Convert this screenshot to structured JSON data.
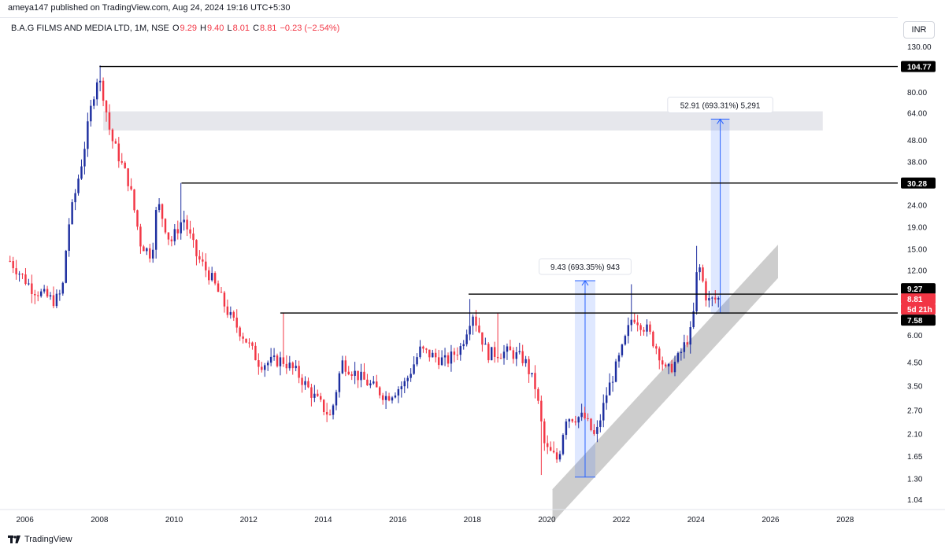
{
  "header": {
    "publish_line": "ameya147 published on TradingView.com, Aug 24, 2024 19:16 UTC+5:30",
    "currency": "INR"
  },
  "legend": {
    "name": "B.A.G FILMS AND MEDIA LTD, 1M, NSE",
    "open_label": "O",
    "open": "9.29",
    "high_label": "H",
    "high": "9.40",
    "low_label": "L",
    "low": "8.01",
    "close_label": "C",
    "close": "8.81",
    "change": "−0.23 (−2.54%)"
  },
  "footer": {
    "brand": "TradingView"
  },
  "colors": {
    "up": "#1e2fa0",
    "down": "#f23645",
    "measure": "#2962ff",
    "zone": "#e6e7ec",
    "channel": "#c4c4c4"
  },
  "chart_data": {
    "type": "candlestick",
    "scale": "log",
    "ylim": [
      0.95,
      140
    ],
    "xlim": [
      2005.5,
      2029.2
    ],
    "y_ticks": [
      "130.00",
      "80.00",
      "64.00",
      "48.00",
      "38.00",
      "24.00",
      "19.00",
      "15.00",
      "12.00",
      "6.00",
      "4.50",
      "3.50",
      "2.70",
      "2.10",
      "1.65",
      "1.30",
      "1.04"
    ],
    "x_ticks": [
      "2006",
      "2008",
      "2010",
      "2012",
      "2014",
      "2016",
      "2018",
      "2020",
      "2022",
      "2024",
      "2026",
      "2028"
    ],
    "price_badges": [
      {
        "text": "104.77",
        "value": 104.77,
        "kind": "line"
      },
      {
        "text": "30.28",
        "value": 30.28,
        "kind": "line"
      },
      {
        "text": "9.27",
        "value": 9.27,
        "kind": "line"
      },
      {
        "text": "8.81",
        "value": 8.81,
        "kind": "last"
      },
      {
        "text": "5d 21h",
        "value": 8.81,
        "kind": "timer"
      },
      {
        "text": "7.58",
        "value": 7.58,
        "kind": "line"
      }
    ],
    "horizontal_lines": [
      {
        "value": 104.77,
        "from": 2008.0
      },
      {
        "value": 30.28,
        "from": 2010.2
      },
      {
        "value": 9.27,
        "from": 2017.9
      },
      {
        "value": 7.58,
        "from": 2012.85
      }
    ],
    "zone": {
      "from": 2008.1,
      "to": 2027.4,
      "low": 53,
      "high": 65
    },
    "channel": [
      {
        "t": 2020.15,
        "v": 1.16
      },
      {
        "t": 2026.2,
        "v": 15.7
      },
      {
        "t": 2026.2,
        "v": 11.0
      },
      {
        "t": 2020.15,
        "v": 0.81
      }
    ],
    "measures": [
      {
        "from": 2020.75,
        "to": 2021.3,
        "low": 1.32,
        "high": 10.7,
        "label": "9.43 (693.35%) 943"
      },
      {
        "from": 2024.4,
        "to": 2024.9,
        "low": 7.58,
        "high": 59.8,
        "label": "52.91 (693.31%) 5,291"
      }
    ],
    "anchors": [
      {
        "t": 2005.6,
        "v": 13.2
      },
      {
        "t": 2006.2,
        "v": 9.8
      },
      {
        "t": 2006.8,
        "v": 8.6
      },
      {
        "t": 2007.0,
        "v": 9.5
      },
      {
        "t": 2007.15,
        "v": 18.5
      },
      {
        "t": 2007.55,
        "v": 40
      },
      {
        "t": 2007.8,
        "v": 72
      },
      {
        "t": 2007.95,
        "v": 95
      },
      {
        "t": 2008.1,
        "v": 78
      },
      {
        "t": 2008.3,
        "v": 50
      },
      {
        "t": 2008.8,
        "v": 30
      },
      {
        "t": 2009.1,
        "v": 16
      },
      {
        "t": 2009.4,
        "v": 14
      },
      {
        "t": 2009.55,
        "v": 25
      },
      {
        "t": 2009.9,
        "v": 16
      },
      {
        "t": 2010.25,
        "v": 21
      },
      {
        "t": 2010.6,
        "v": 14
      },
      {
        "t": 2011.0,
        "v": 11
      },
      {
        "t": 2011.5,
        "v": 7.3
      },
      {
        "t": 2011.9,
        "v": 5.8
      },
      {
        "t": 2012.3,
        "v": 4.4
      },
      {
        "t": 2012.9,
        "v": 4.6
      },
      {
        "t": 2013.3,
        "v": 4.0
      },
      {
        "t": 2013.7,
        "v": 3.2
      },
      {
        "t": 2014.2,
        "v": 2.5
      },
      {
        "t": 2014.5,
        "v": 4.5
      },
      {
        "t": 2015.0,
        "v": 3.8
      },
      {
        "t": 2015.7,
        "v": 3.1
      },
      {
        "t": 2016.2,
        "v": 3.6
      },
      {
        "t": 2016.6,
        "v": 5.1
      },
      {
        "t": 2017.3,
        "v": 4.5
      },
      {
        "t": 2017.7,
        "v": 5.3
      },
      {
        "t": 2018.0,
        "v": 7.7
      },
      {
        "t": 2018.4,
        "v": 4.9
      },
      {
        "t": 2019.0,
        "v": 5.0
      },
      {
        "t": 2019.4,
        "v": 4.6
      },
      {
        "t": 2019.7,
        "v": 3.4
      },
      {
        "t": 2019.95,
        "v": 1.8
      },
      {
        "t": 2020.3,
        "v": 1.58
      },
      {
        "t": 2020.5,
        "v": 2.5
      },
      {
        "t": 2021.0,
        "v": 2.5
      },
      {
        "t": 2021.3,
        "v": 2.0
      },
      {
        "t": 2021.6,
        "v": 3.2
      },
      {
        "t": 2022.0,
        "v": 5.0
      },
      {
        "t": 2022.3,
        "v": 7.4
      },
      {
        "t": 2022.7,
        "v": 6.3
      },
      {
        "t": 2023.0,
        "v": 5.0
      },
      {
        "t": 2023.2,
        "v": 4.0
      },
      {
        "t": 2023.5,
        "v": 4.6
      },
      {
        "t": 2023.9,
        "v": 6.4
      },
      {
        "t": 2024.05,
        "v": 13.3
      },
      {
        "t": 2024.3,
        "v": 8.6
      },
      {
        "t": 2024.6,
        "v": 8.81
      }
    ],
    "spikes": [
      {
        "t": 2007.25,
        "v": 24
      },
      {
        "t": 2008.0,
        "v": 106
      },
      {
        "t": 2010.2,
        "v": 30.3
      },
      {
        "t": 2012.9,
        "v": 7.6
      },
      {
        "t": 2017.95,
        "v": 8.8
      },
      {
        "t": 2018.7,
        "v": 7.6
      },
      {
        "t": 2019.85,
        "v": 1.35
      },
      {
        "t": 2022.25,
        "v": 10.3
      },
      {
        "t": 2024.05,
        "v": 15.5
      }
    ]
  }
}
